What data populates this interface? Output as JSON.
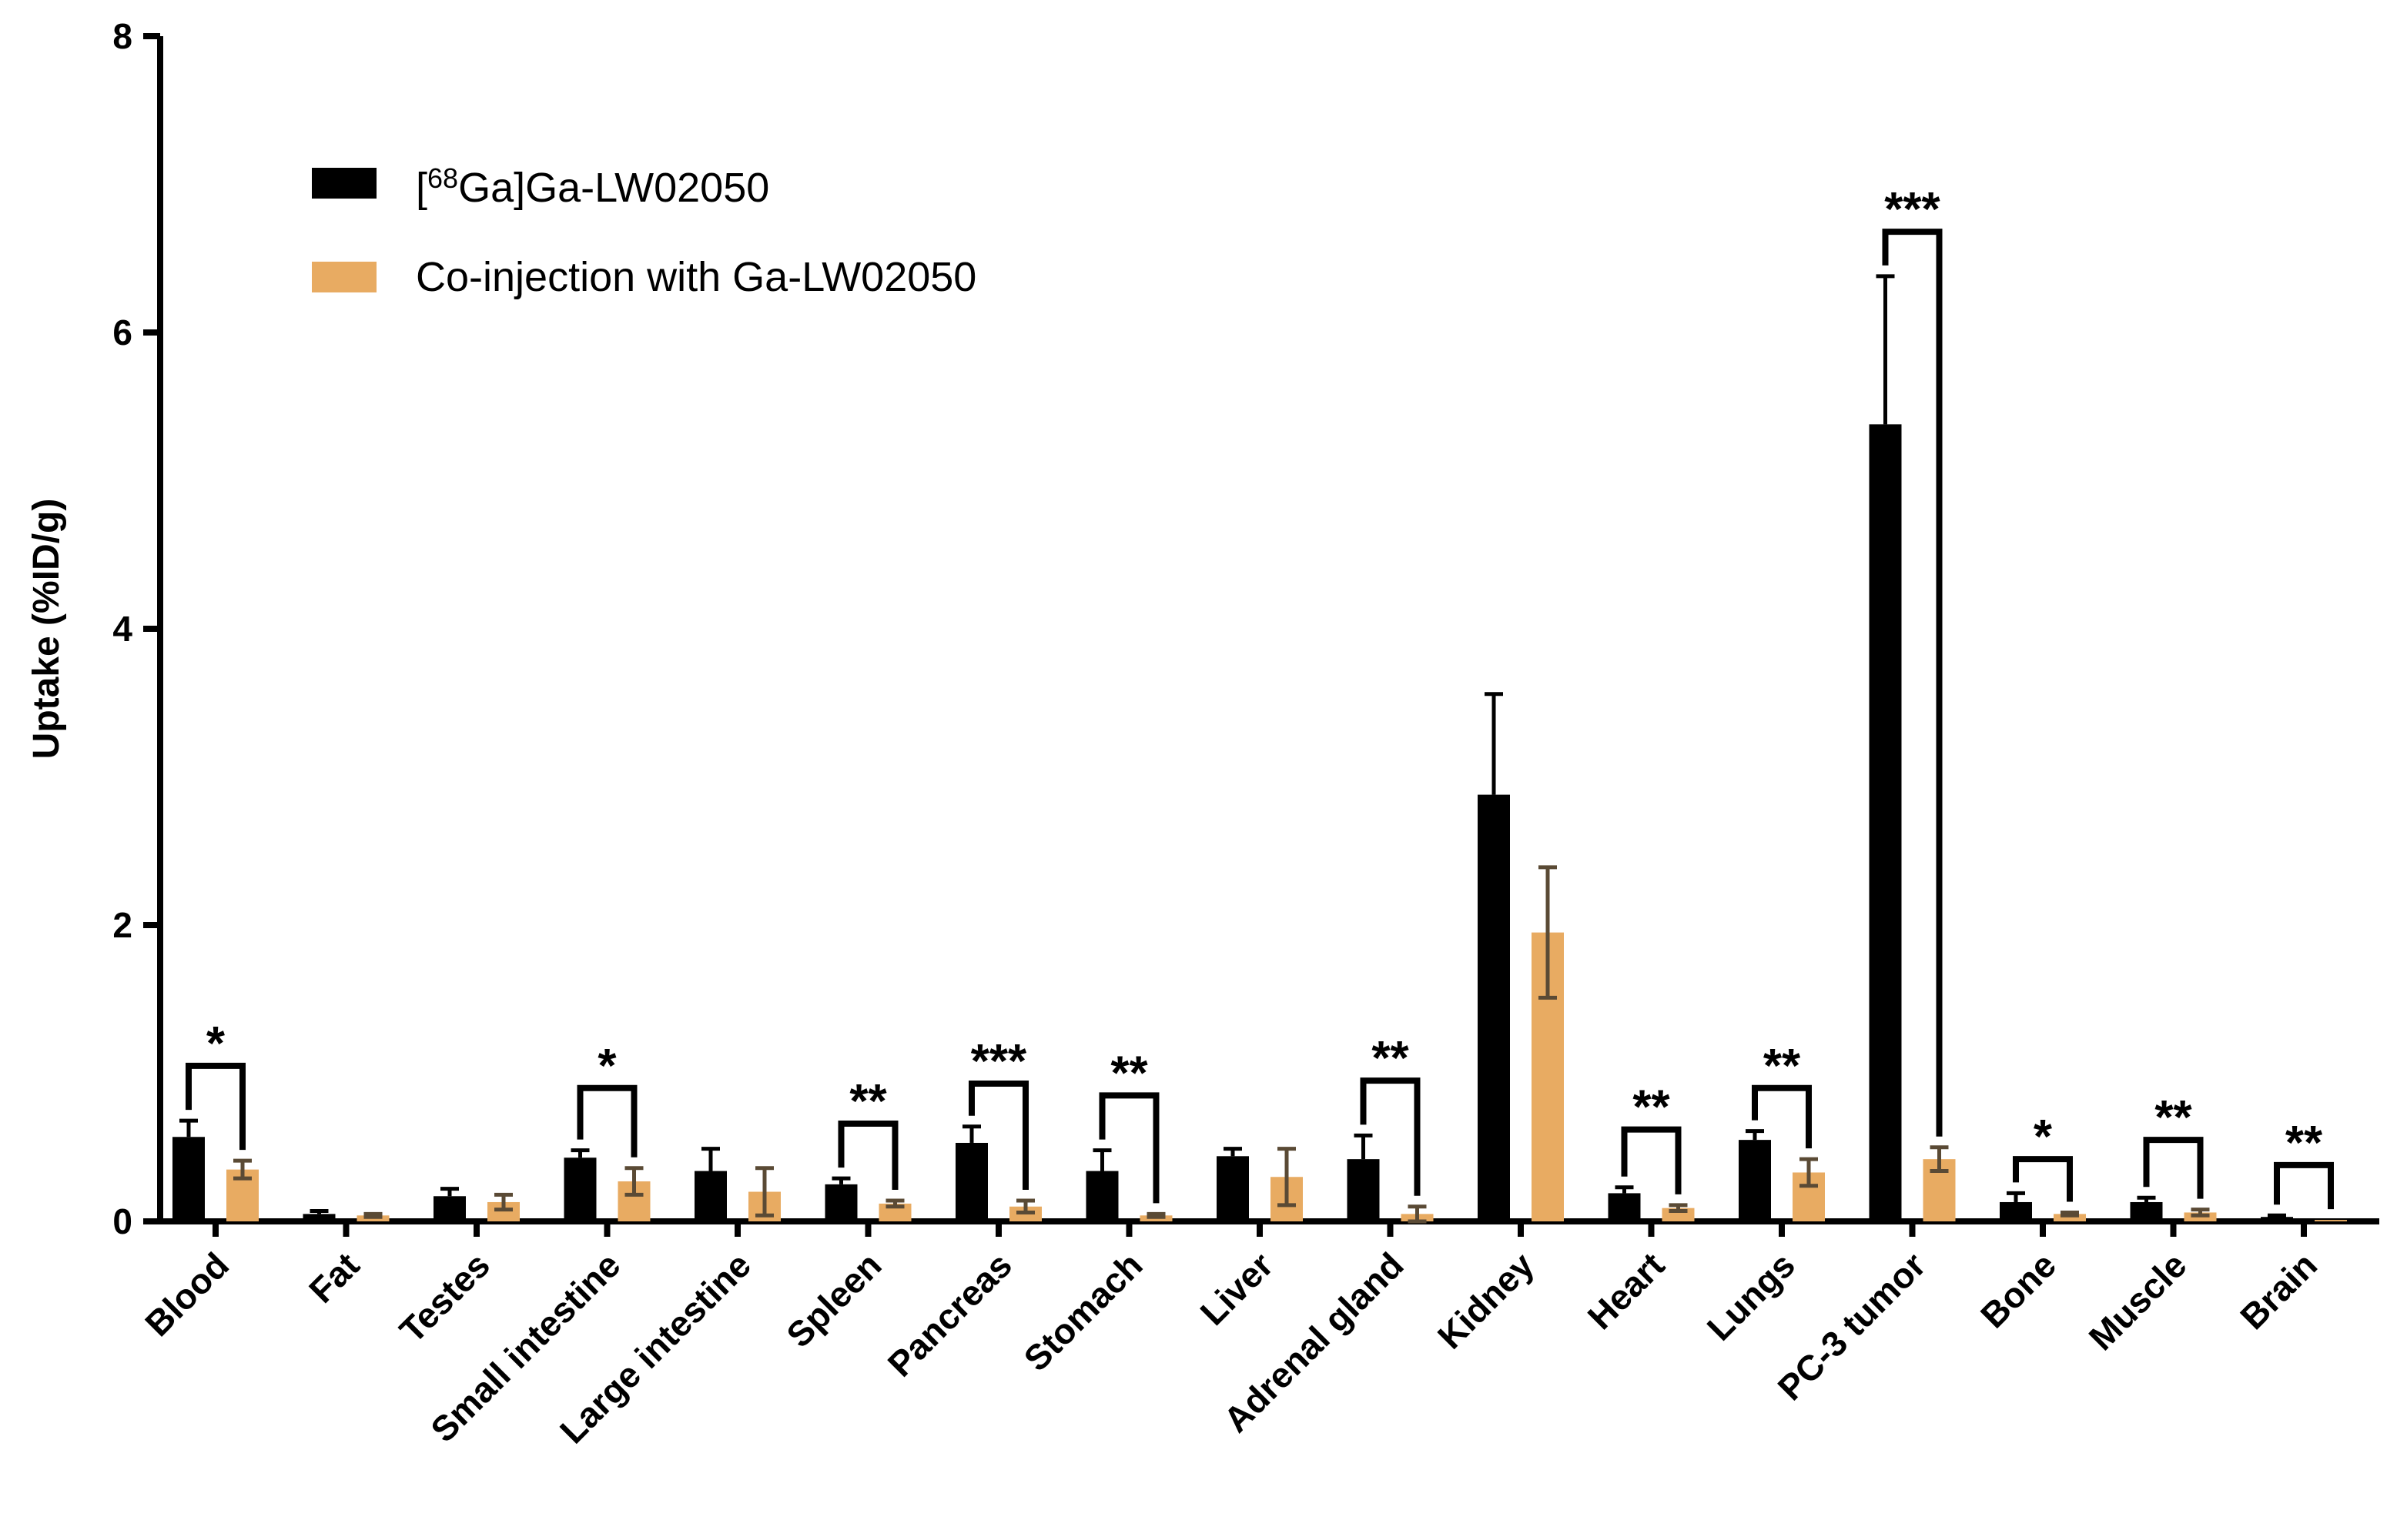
{
  "chart_data": {
    "type": "bar",
    "title": "",
    "xlabel": "",
    "ylabel": "Uptake (%ID/g)",
    "ylim": [
      0,
      8
    ],
    "yticks": [
      "0",
      "2",
      "4",
      "6",
      "8"
    ],
    "grid": false,
    "legend_position": "top-left",
    "categories": [
      "Blood",
      "Fat",
      "Testes",
      "Small intestine",
      "Large intestine",
      "Spleen",
      "Pancreas",
      "Stomach",
      "Liver",
      "Adrenal gland",
      "Kidney",
      "Heart",
      "Lungs",
      "PC-3 tumor",
      "Bone",
      "Muscle",
      "Brain"
    ],
    "series": [
      {
        "name": "[68Ga]Ga-LW02050",
        "name_prefix": "[",
        "name_superscript": "68",
        "name_suffix": "Ga]Ga-LW02050",
        "color": "#000000",
        "error_color": "#000000",
        "values": [
          0.57,
          0.05,
          0.17,
          0.43,
          0.34,
          0.25,
          0.53,
          0.34,
          0.44,
          0.42,
          2.88,
          0.19,
          0.55,
          5.38,
          0.13,
          0.13,
          0.03
        ],
        "errors": [
          0.11,
          0.02,
          0.05,
          0.05,
          0.15,
          0.04,
          0.11,
          0.14,
          0.05,
          0.16,
          0.68,
          0.04,
          0.06,
          1.0,
          0.06,
          0.03,
          0.01
        ]
      },
      {
        "name": "Co-injection with Ga-LW02050",
        "color": "#E8AB62",
        "error_color": "#5A4A35",
        "values": [
          0.35,
          0.04,
          0.13,
          0.27,
          0.2,
          0.12,
          0.1,
          0.04,
          0.3,
          0.05,
          1.95,
          0.09,
          0.33,
          0.42,
          0.05,
          0.06,
          0.01
        ],
        "errors": [
          0.06,
          0.01,
          0.05,
          0.09,
          0.16,
          0.02,
          0.04,
          0.01,
          0.19,
          0.05,
          0.44,
          0.02,
          0.09,
          0.08,
          0.01,
          0.02,
          0.0
        ]
      }
    ],
    "significance": [
      {
        "category": "Blood",
        "label": "*",
        "bracket_top": 1.05
      },
      {
        "category": "Small intestine",
        "label": "*",
        "bracket_top": 0.9
      },
      {
        "category": "Spleen",
        "label": "**",
        "bracket_top": 0.66
      },
      {
        "category": "Pancreas",
        "label": "***",
        "bracket_top": 0.93
      },
      {
        "category": "Stomach",
        "label": "**",
        "bracket_top": 0.85
      },
      {
        "category": "Adrenal gland",
        "label": "**",
        "bracket_top": 0.95
      },
      {
        "category": "Heart",
        "label": "**",
        "bracket_top": 0.62
      },
      {
        "category": "Lungs",
        "label": "**",
        "bracket_top": 0.9
      },
      {
        "category": "PC-3 tumor",
        "label": "***",
        "bracket_top": 6.68
      },
      {
        "category": "Bone",
        "label": "*",
        "bracket_top": 0.42
      },
      {
        "category": "Muscle",
        "label": "**",
        "bracket_top": 0.55
      },
      {
        "category": "Brain",
        "label": "**",
        "bracket_top": 0.38
      }
    ]
  }
}
